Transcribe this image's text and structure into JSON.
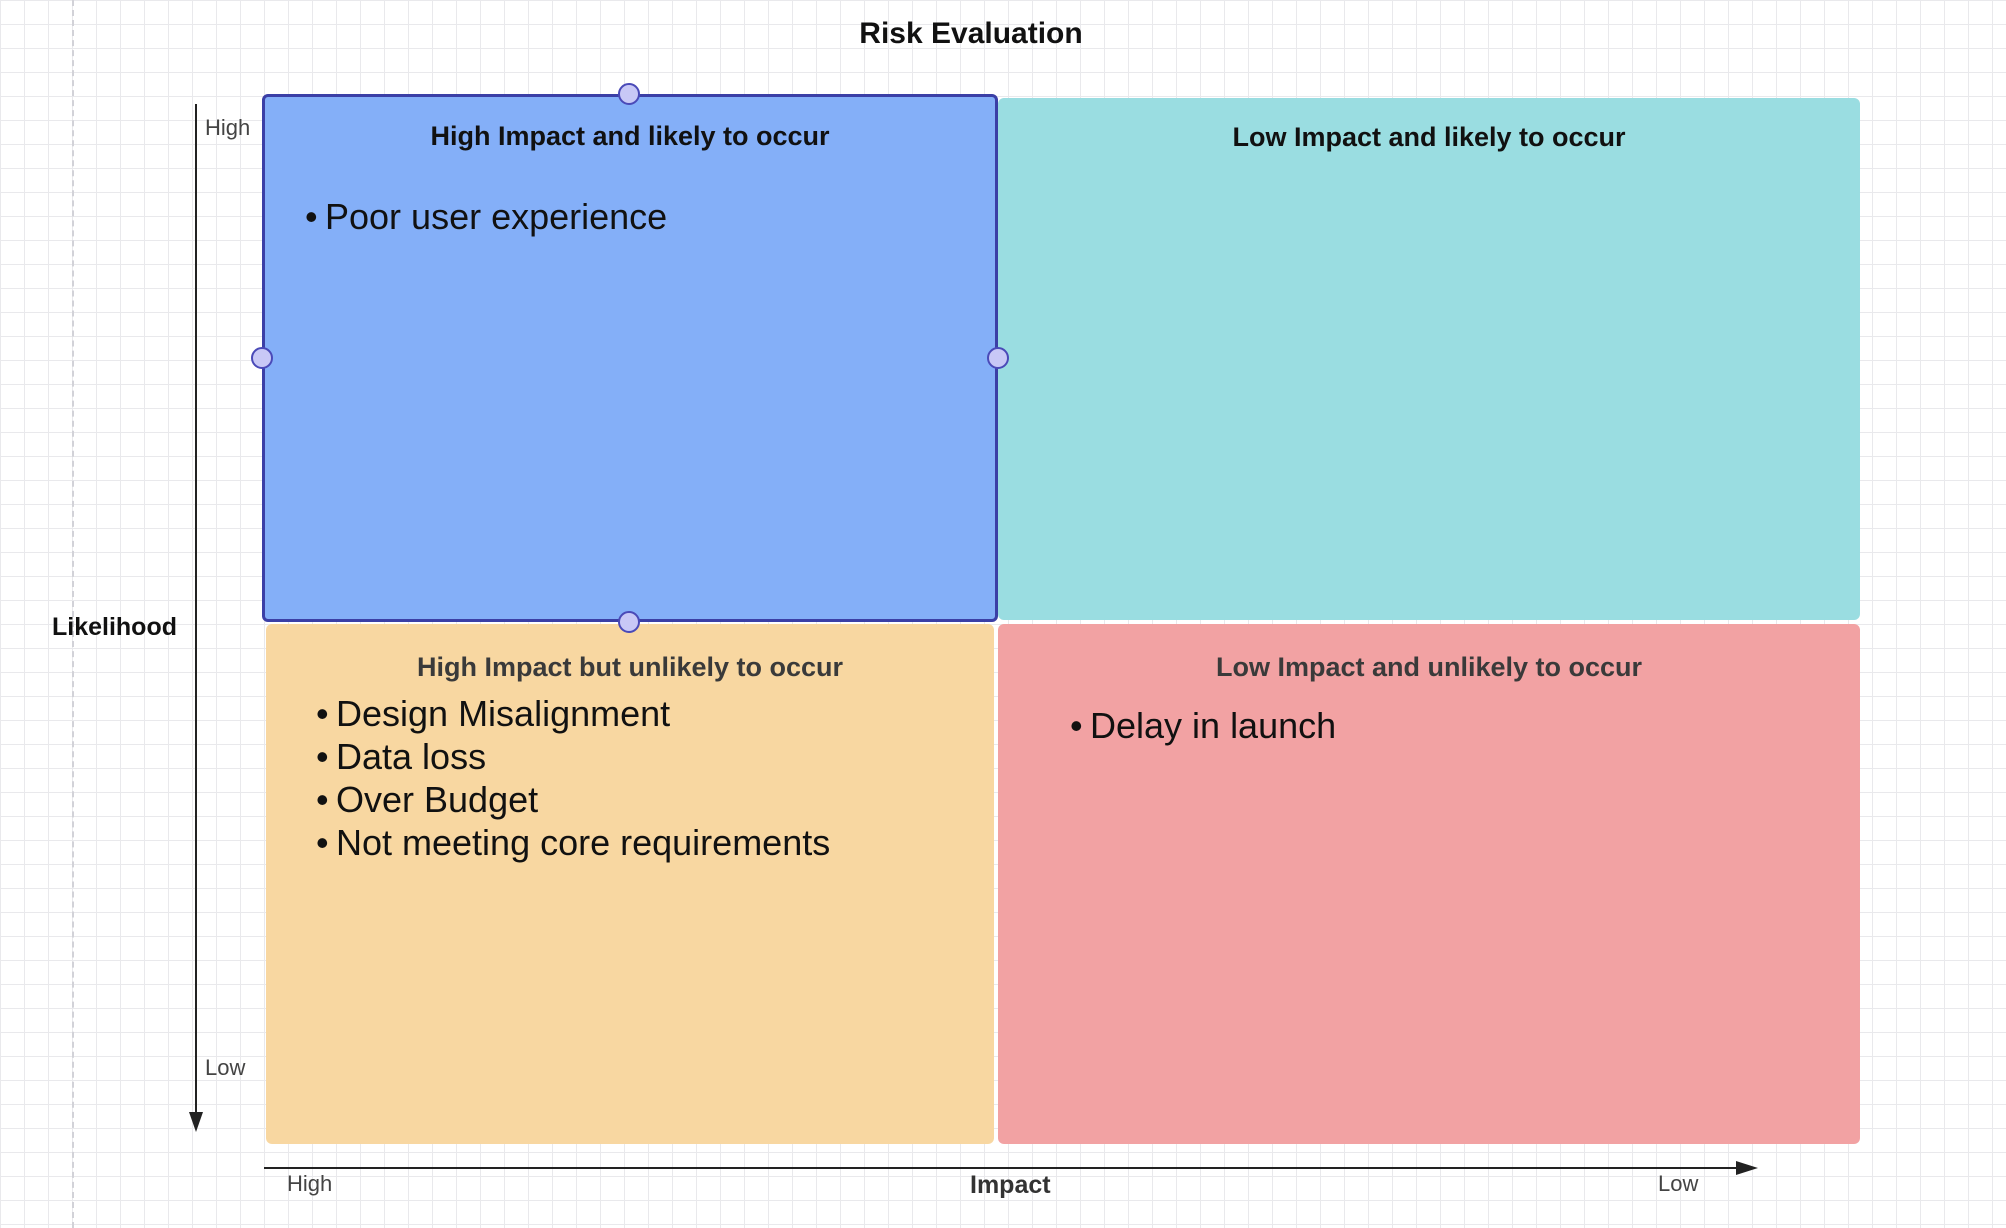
{
  "title": "Risk Evaluation",
  "axes": {
    "y_title": "Likelihood",
    "y_high": "High",
    "y_low": "Low",
    "x_title": "Impact",
    "x_high": "High",
    "x_low": "Low"
  },
  "quadrants": {
    "high_likely": {
      "title": "High Impact and likely to occur",
      "color": "#84aff8",
      "items": [
        "Poor user experience"
      ]
    },
    "low_likely": {
      "title": "Low Impact and likely to occur",
      "color": "#9adde1",
      "items": []
    },
    "high_unlikely": {
      "title": "High Impact but unlikely to occur",
      "color": "#f8d7a1",
      "items": [
        "Design Misalignment",
        "Data loss",
        "Over Budget",
        "Not meeting core requirements"
      ]
    },
    "low_unlikely": {
      "title": "Low Impact and unlikely to occur",
      "color": "#f2a2a3",
      "items": [
        "Delay in launch"
      ]
    }
  },
  "selection_color": "#3b3fa6"
}
